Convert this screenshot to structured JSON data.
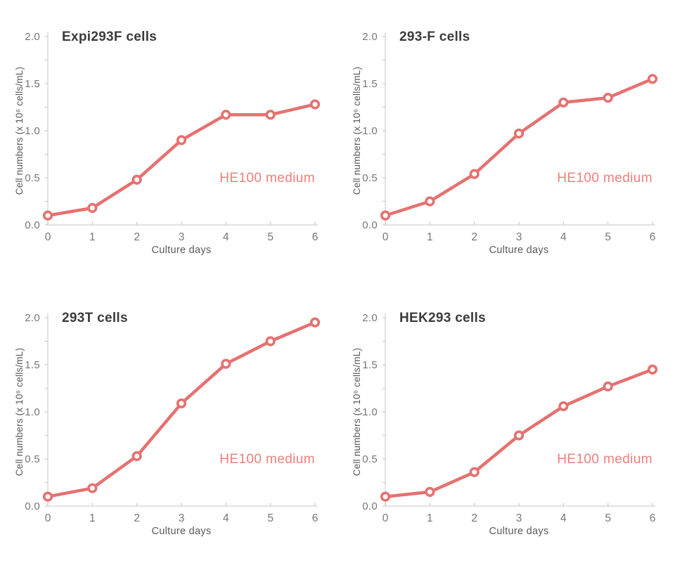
{
  "page": {
    "background": "#ffffff"
  },
  "style": {
    "line_color": "#e57170",
    "marker_fill": "#ffffff",
    "annotation_color": "#ee807b",
    "title_color": "#3b3b3b",
    "tick_label_color": "#767676",
    "axis_label_color": "#5a5a5a",
    "axis_line_color": "#d8d8d8",
    "tick_mark_color": "#c8c8c8"
  },
  "chart_data": [
    {
      "type": "line",
      "title": "Expi293F cells",
      "xlabel": "Culture days",
      "ylabel": "Cell numbers (x 10⁶ cells/mL)",
      "annotation": "HE100 medium",
      "series_name": "HE100 medium",
      "x": [
        0,
        1,
        2,
        3,
        4,
        5,
        6
      ],
      "values": [
        0.1,
        0.18,
        0.48,
        0.9,
        1.17,
        1.17,
        1.28
      ],
      "xlim": [
        0,
        6
      ],
      "ylim": [
        0,
        2
      ],
      "xticks": [
        0,
        1,
        2,
        3,
        4,
        5,
        6
      ],
      "xtick_labels": [
        "0",
        "1",
        "2",
        "3",
        "4",
        "5",
        "6"
      ],
      "yticks": [
        0,
        0.5,
        1,
        1.5,
        2
      ],
      "ytick_labels": [
        "0.0",
        "0.5",
        "1.0",
        "1.5",
        "2.0"
      ],
      "y_minor_step": 0.25,
      "grid": false,
      "legend_position": "none"
    },
    {
      "type": "line",
      "title": "293-F cells",
      "xlabel": "Culture days",
      "ylabel": "Cell numbers (x 10⁶ cells/mL)",
      "annotation": "HE100 medium",
      "series_name": "HE100 medium",
      "x": [
        0,
        1,
        2,
        3,
        4,
        5,
        6
      ],
      "values": [
        0.1,
        0.25,
        0.54,
        0.97,
        1.3,
        1.35,
        1.55
      ],
      "xlim": [
        0,
        6
      ],
      "ylim": [
        0,
        2
      ],
      "xticks": [
        0,
        1,
        2,
        3,
        4,
        5,
        6
      ],
      "xtick_labels": [
        "0",
        "1",
        "2",
        "3",
        "4",
        "5",
        "6"
      ],
      "yticks": [
        0,
        0.5,
        1,
        1.5,
        2
      ],
      "ytick_labels": [
        "0.0",
        "0.5",
        "1.0",
        "1.5",
        "2.0"
      ],
      "y_minor_step": 0.25,
      "grid": false,
      "legend_position": "none"
    },
    {
      "type": "line",
      "title": "293T cells",
      "xlabel": "Culture days",
      "ylabel": "Cell numbers (x 10⁶ cells/mL)",
      "annotation": "HE100 medium",
      "series_name": "HE100 medium",
      "x": [
        0,
        1,
        2,
        3,
        4,
        5,
        6
      ],
      "values": [
        0.1,
        0.19,
        0.53,
        1.09,
        1.51,
        1.75,
        1.95
      ],
      "xlim": [
        0,
        6
      ],
      "ylim": [
        0,
        2
      ],
      "xticks": [
        0,
        1,
        2,
        3,
        4,
        5,
        6
      ],
      "xtick_labels": [
        "0",
        "1",
        "2",
        "3",
        "4",
        "5",
        "6"
      ],
      "yticks": [
        0,
        0.5,
        1,
        1.5,
        2
      ],
      "ytick_labels": [
        "0.0",
        "0.5",
        "1.0",
        "1.5",
        "2.0"
      ],
      "y_minor_step": 0.25,
      "grid": false,
      "legend_position": "none"
    },
    {
      "type": "line",
      "title": "HEK293 cells",
      "xlabel": "Culture days",
      "ylabel": "Cell numbers (x 10⁶ cells/mL)",
      "annotation": "HE100 medium",
      "series_name": "HE100 medium",
      "x": [
        0,
        1,
        2,
        3,
        4,
        5,
        6
      ],
      "values": [
        0.1,
        0.15,
        0.36,
        0.75,
        1.06,
        1.27,
        1.45
      ],
      "xlim": [
        0,
        6
      ],
      "ylim": [
        0,
        2
      ],
      "xticks": [
        0,
        1,
        2,
        3,
        4,
        5,
        6
      ],
      "xtick_labels": [
        "0",
        "1",
        "2",
        "3",
        "4",
        "5",
        "6"
      ],
      "yticks": [
        0,
        0.5,
        1,
        1.5,
        2
      ],
      "ytick_labels": [
        "0.0",
        "0.5",
        "1.0",
        "1.5",
        "2.0"
      ],
      "y_minor_step": 0.25,
      "grid": false,
      "legend_position": "none"
    }
  ]
}
